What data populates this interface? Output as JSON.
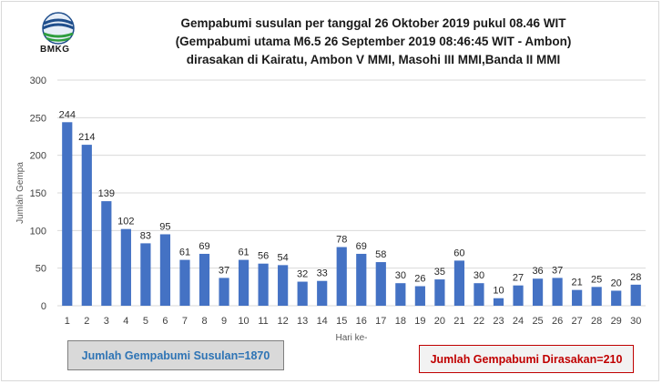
{
  "logo": {
    "text": "BMKG"
  },
  "title_lines": [
    "Gempabumi susulan per tanggal 26 Oktober 2019 pukul 08.46 WIT",
    "(Gempabumi utama M6.5 26 September 2019 08:46:45 WIT - Ambon)",
    "dirasakan di Kairatu, Ambon V MMI, Masohi III MMI,Banda II MMI"
  ],
  "summary": {
    "total_label": "Jumlah Gempabumi Susulan=1870",
    "felt_label": "Jumlah Gempabumi Dirasakan=210"
  },
  "colors": {
    "bar": "#4472c4",
    "total_text": "#2e74b5",
    "felt_text": "#c00000",
    "gridline": "#d9d9d9"
  },
  "chart_data": {
    "type": "bar",
    "title": "Gempabumi susulan per tanggal 26 Oktober 2019 pukul 08.46 WIT",
    "xlabel": "Hari ke-",
    "ylabel": "Jumlah Gempa",
    "ylim": [
      0,
      300
    ],
    "yticks": [
      0,
      50,
      100,
      150,
      200,
      250,
      300
    ],
    "grid": true,
    "categories": [
      "1",
      "2",
      "3",
      "4",
      "5",
      "6",
      "7",
      "8",
      "9",
      "10",
      "11",
      "12",
      "13",
      "14",
      "15",
      "16",
      "17",
      "18",
      "19",
      "20",
      "21",
      "22",
      "23",
      "24",
      "25",
      "26",
      "27",
      "28",
      "29",
      "30"
    ],
    "values": [
      244,
      214,
      139,
      102,
      83,
      95,
      61,
      69,
      37,
      61,
      56,
      54,
      32,
      33,
      78,
      69,
      58,
      30,
      26,
      35,
      60,
      30,
      10,
      27,
      36,
      37,
      21,
      25,
      20,
      28
    ]
  }
}
